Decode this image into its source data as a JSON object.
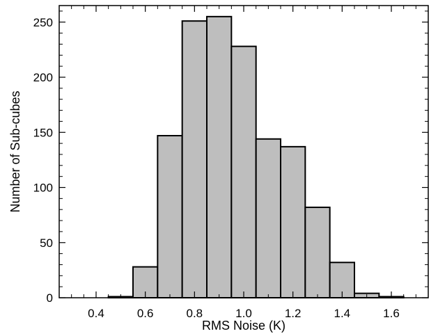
{
  "chart_data": {
    "type": "bar",
    "xlabel": "RMS Noise (K)",
    "ylabel": "Number of Sub-cubes",
    "xlim": [
      0.25,
      1.75
    ],
    "ylim": [
      0,
      265
    ],
    "xticks": [
      "0.4",
      "0.6",
      "0.8",
      "1.0",
      "1.2",
      "1.4",
      "1.6"
    ],
    "yticks": [
      "0",
      "50",
      "100",
      "150",
      "200",
      "250"
    ],
    "bin_width": 0.1,
    "bins": [
      {
        "center": 0.4,
        "value": 0
      },
      {
        "center": 0.5,
        "value": 1
      },
      {
        "center": 0.6,
        "value": 28
      },
      {
        "center": 0.7,
        "value": 147
      },
      {
        "center": 0.8,
        "value": 251
      },
      {
        "center": 0.9,
        "value": 255
      },
      {
        "center": 1.0,
        "value": 228
      },
      {
        "center": 1.1,
        "value": 144
      },
      {
        "center": 1.2,
        "value": 137
      },
      {
        "center": 1.3,
        "value": 82
      },
      {
        "center": 1.4,
        "value": 32
      },
      {
        "center": 1.5,
        "value": 4
      },
      {
        "center": 1.6,
        "value": 1
      }
    ],
    "bar_color": "#bebebe",
    "edge_color": "#000000",
    "grid": false,
    "legend": "none"
  }
}
